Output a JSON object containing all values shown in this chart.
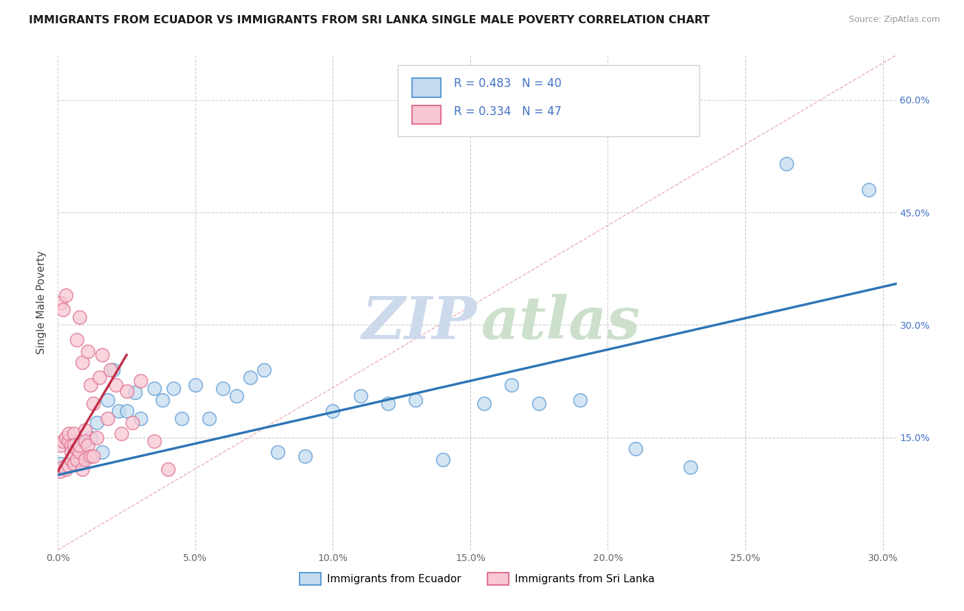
{
  "title": "IMMIGRANTS FROM ECUADOR VS IMMIGRANTS FROM SRI LANKA SINGLE MALE POVERTY CORRELATION CHART",
  "source": "Source: ZipAtlas.com",
  "ylabel": "Single Male Poverty",
  "xlim": [
    0.0,
    0.305
  ],
  "ylim": [
    0.0,
    0.66
  ],
  "xtick_values": [
    0.0,
    0.05,
    0.1,
    0.15,
    0.2,
    0.25,
    0.3
  ],
  "ytick_values": [
    0.15,
    0.3,
    0.45,
    0.6
  ],
  "ecuador_color_edge": "#5b9bd5",
  "ecuador_color_fill": "#c5dcf0",
  "srilanka_color_edge": "#e07090",
  "srilanka_color_fill": "#f8c8d4",
  "ecuador_line_color": "#2e75b6",
  "srilanka_line_color": "#c0304a",
  "legend_text_color": "#4472c4",
  "ecuador_R": 0.483,
  "ecuador_N": 40,
  "srilanka_R": 0.334,
  "srilanka_N": 47,
  "legend_label_ecuador": "Immigrants from Ecuador",
  "legend_label_srilanka": "Immigrants from Sri Lanka",
  "ecuador_scatter_x": [
    0.001,
    0.003,
    0.005,
    0.006,
    0.008,
    0.01,
    0.012,
    0.014,
    0.016,
    0.018,
    0.02,
    0.022,
    0.025,
    0.028,
    0.03,
    0.035,
    0.038,
    0.042,
    0.045,
    0.05,
    0.055,
    0.06,
    0.065,
    0.07,
    0.075,
    0.08,
    0.09,
    0.1,
    0.11,
    0.12,
    0.13,
    0.14,
    0.155,
    0.165,
    0.175,
    0.19,
    0.21,
    0.23,
    0.265,
    0.295
  ],
  "ecuador_scatter_y": [
    0.115,
    0.11,
    0.115,
    0.125,
    0.12,
    0.145,
    0.15,
    0.17,
    0.13,
    0.2,
    0.24,
    0.185,
    0.185,
    0.21,
    0.175,
    0.215,
    0.2,
    0.215,
    0.175,
    0.22,
    0.175,
    0.215,
    0.205,
    0.23,
    0.24,
    0.13,
    0.125,
    0.185,
    0.205,
    0.195,
    0.2,
    0.12,
    0.195,
    0.22,
    0.195,
    0.2,
    0.135,
    0.11,
    0.515,
    0.48
  ],
  "srilanka_scatter_x": [
    0.001,
    0.001,
    0.001,
    0.002,
    0.002,
    0.002,
    0.003,
    0.003,
    0.003,
    0.004,
    0.004,
    0.004,
    0.005,
    0.005,
    0.005,
    0.006,
    0.006,
    0.006,
    0.007,
    0.007,
    0.007,
    0.008,
    0.008,
    0.008,
    0.009,
    0.009,
    0.01,
    0.01,
    0.01,
    0.011,
    0.011,
    0.012,
    0.012,
    0.013,
    0.013,
    0.014,
    0.015,
    0.016,
    0.018,
    0.019,
    0.021,
    0.023,
    0.025,
    0.027,
    0.03,
    0.035,
    0.04
  ],
  "srilanka_scatter_y": [
    0.105,
    0.14,
    0.33,
    0.11,
    0.145,
    0.32,
    0.108,
    0.15,
    0.34,
    0.112,
    0.145,
    0.155,
    0.12,
    0.14,
    0.13,
    0.115,
    0.155,
    0.14,
    0.12,
    0.28,
    0.135,
    0.13,
    0.31,
    0.14,
    0.108,
    0.25,
    0.12,
    0.16,
    0.145,
    0.14,
    0.265,
    0.125,
    0.22,
    0.125,
    0.195,
    0.15,
    0.23,
    0.26,
    0.175,
    0.24,
    0.22,
    0.155,
    0.212,
    0.17,
    0.225,
    0.145,
    0.108
  ],
  "diag_line_x": [
    0.0,
    0.305
  ],
  "diag_line_y": [
    0.0,
    0.66
  ],
  "ec_line_x": [
    0.0,
    0.305
  ],
  "ec_line_y": [
    0.1,
    0.355
  ],
  "sl_line_x": [
    0.0,
    0.025
  ],
  "sl_line_y": [
    0.105,
    0.26
  ]
}
